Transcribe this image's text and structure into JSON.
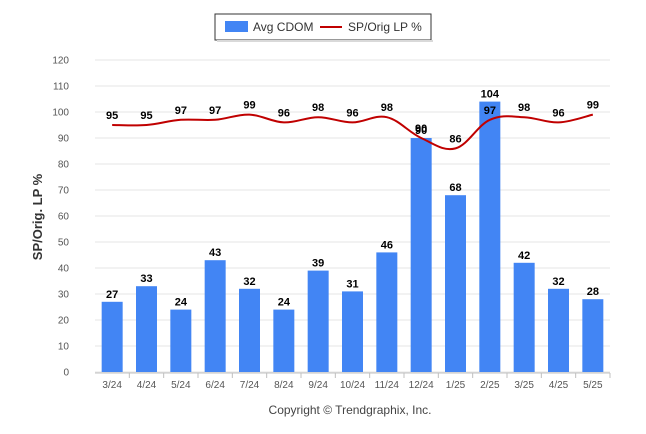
{
  "colors": {
    "bar": "#4285f4",
    "line": "#c00000",
    "grid": "#e6e6e6"
  },
  "legend": {
    "bar_label": "Avg CDOM",
    "line_label": "SP/Orig LP %"
  },
  "copyright": "Copyright © Trendgraphix, Inc.",
  "chart_data": {
    "type": "bar",
    "categories": [
      "3/24",
      "4/24",
      "5/24",
      "6/24",
      "7/24",
      "8/24",
      "9/24",
      "10/24",
      "11/24",
      "12/24",
      "1/25",
      "2/25",
      "3/25",
      "4/25",
      "5/25"
    ],
    "series": [
      {
        "name": "Avg CDOM",
        "type": "bar",
        "values": [
          27,
          33,
          24,
          43,
          32,
          24,
          39,
          31,
          46,
          90,
          68,
          104,
          42,
          32,
          28
        ]
      },
      {
        "name": "SP/Orig LP %",
        "type": "line",
        "values": [
          95,
          95,
          97,
          97,
          99,
          96,
          98,
          96,
          98,
          90,
          86,
          97,
          98,
          96,
          99
        ]
      }
    ],
    "ylabel": "SP/Orig. LP %",
    "ylim": [
      0,
      120
    ],
    "yticks": [
      0,
      10,
      20,
      30,
      40,
      50,
      60,
      70,
      80,
      90,
      100,
      110,
      120
    ],
    "grid": true,
    "legend_position": "top-center"
  }
}
